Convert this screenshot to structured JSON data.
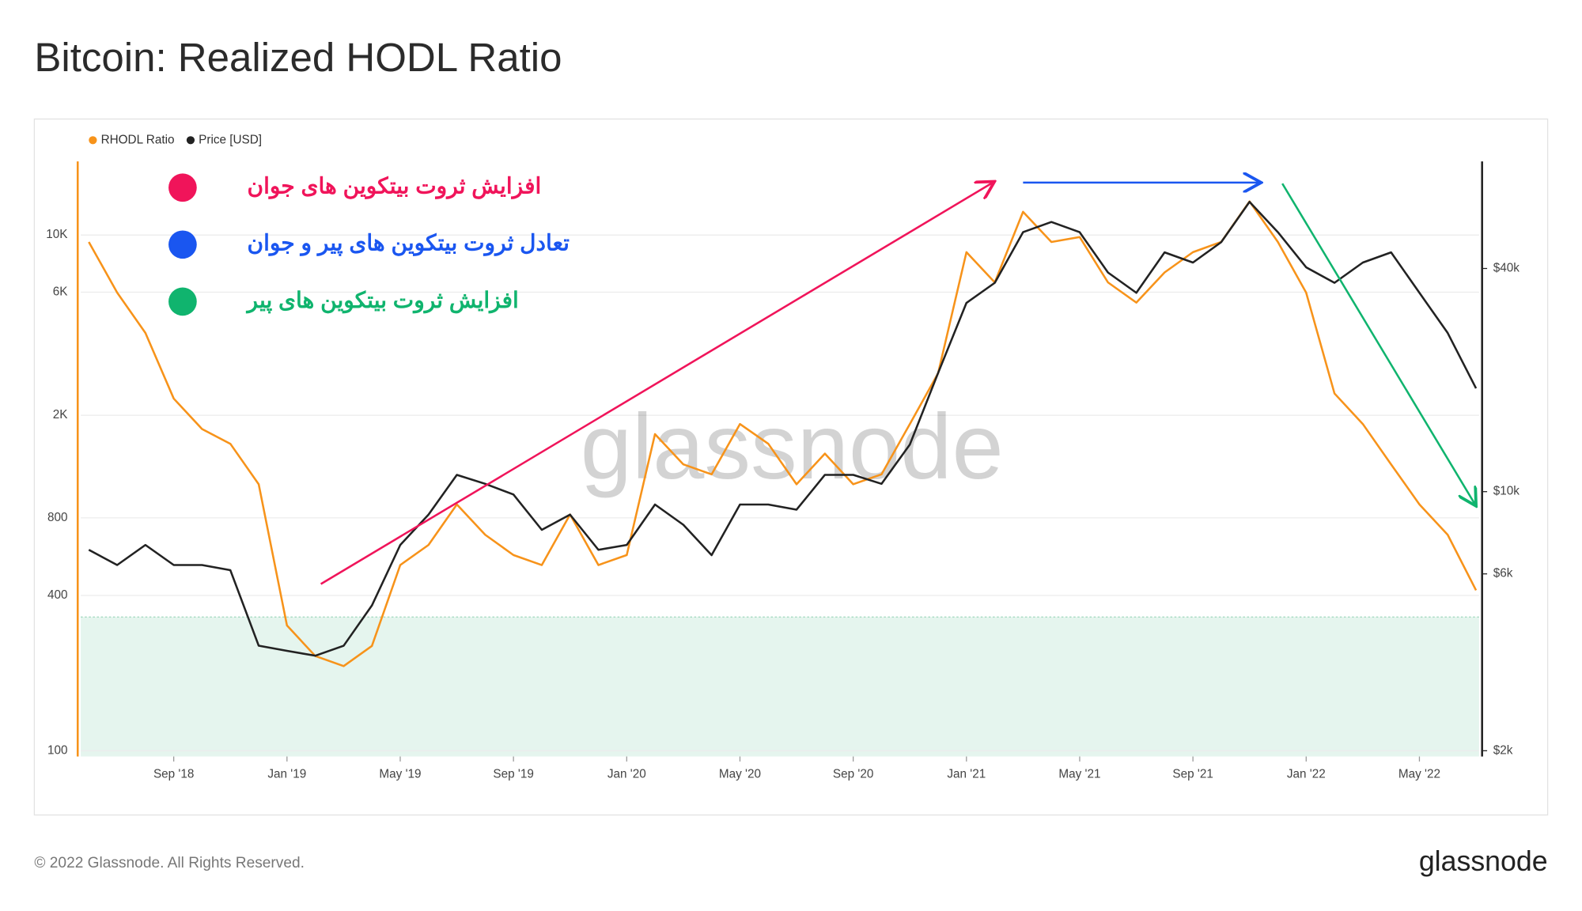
{
  "chart_data": {
    "type": "line",
    "title": "Bitcoin: Realized HODL Ratio",
    "watermark": "glassnode",
    "footer": "© 2022 Glassnode. All Rights Reserved.",
    "logo": "glassnode",
    "log_scale": true,
    "grid": true,
    "x": [
      "2018-06",
      "2018-07",
      "2018-08",
      "2018-09",
      "2018-10",
      "2018-11",
      "2018-12",
      "2019-01",
      "2019-02",
      "2019-03",
      "2019-04",
      "2019-05",
      "2019-06",
      "2019-07",
      "2019-08",
      "2019-09",
      "2019-10",
      "2019-11",
      "2019-12",
      "2020-01",
      "2020-02",
      "2020-03",
      "2020-04",
      "2020-05",
      "2020-06",
      "2020-07",
      "2020-08",
      "2020-09",
      "2020-10",
      "2020-11",
      "2020-12",
      "2021-01",
      "2021-02",
      "2021-03",
      "2021-04",
      "2021-05",
      "2021-06",
      "2021-07",
      "2021-08",
      "2021-09",
      "2021-10",
      "2021-11",
      "2021-12",
      "2022-01",
      "2022-02",
      "2022-03",
      "2022-04",
      "2022-05",
      "2022-06",
      "2022-07"
    ],
    "xlim": [
      "2018-06",
      "2022-07"
    ],
    "xticks": [
      {
        "value": "2018-09",
        "label": "Sep '18"
      },
      {
        "value": "2019-01",
        "label": "Jan '19"
      },
      {
        "value": "2019-05",
        "label": "May '19"
      },
      {
        "value": "2019-09",
        "label": "Sep '19"
      },
      {
        "value": "2020-01",
        "label": "Jan '20"
      },
      {
        "value": "2020-05",
        "label": "May '20"
      },
      {
        "value": "2020-09",
        "label": "Sep '20"
      },
      {
        "value": "2021-01",
        "label": "Jan '21"
      },
      {
        "value": "2021-05",
        "label": "May '21"
      },
      {
        "value": "2021-09",
        "label": "Sep '21"
      },
      {
        "value": "2022-01",
        "label": "Jan '22"
      },
      {
        "value": "2022-05",
        "label": "May '22"
      }
    ],
    "ylim": [
      95,
      19300
    ],
    "yticks": [
      100,
      400,
      800,
      {
        "value": 2000,
        "label": "2K"
      },
      {
        "value": 6000,
        "label": "6K"
      },
      {
        "value": 10000,
        "label": "10K"
      }
    ],
    "y2lim": [
      1930,
      77800
    ],
    "y2ticks": [
      {
        "value": 2000,
        "label": "$2k"
      },
      {
        "value": 6000,
        "label": "$6k"
      },
      {
        "value": 10000,
        "label": "$10k"
      },
      {
        "value": 40000,
        "label": "$40k"
      }
    ],
    "shaded_below": 330,
    "series": [
      {
        "name": "RHODL Ratio",
        "color": "#f7931a",
        "values": [
          9400,
          5980,
          4170,
          2320,
          1770,
          1550,
          1080,
          306,
          233,
          213,
          255,
          525,
          628,
          902,
          688,
          574,
          525,
          824,
          525,
          574,
          1690,
          1290,
          1180,
          1850,
          1550,
          1080,
          1420,
          1080,
          1180,
          1850,
          2910,
          8580,
          6550,
          12300,
          9400,
          9820,
          6550,
          5470,
          7160,
          8580,
          9400,
          13500,
          9400,
          5980,
          2430,
          1850,
          1290,
          902,
          688,
          419
        ]
      },
      {
        "name": "Price [USD]",
        "color": "#222222",
        "axis": "y2",
        "values": [
          6970,
          6340,
          7180,
          6340,
          6340,
          6140,
          3840,
          3720,
          3610,
          3840,
          4930,
          7180,
          8670,
          11100,
          10500,
          9820,
          7890,
          8670,
          6970,
          7180,
          9230,
          8140,
          6740,
          9230,
          9230,
          8940,
          11100,
          11100,
          10500,
          13400,
          20900,
          32300,
          36600,
          50100,
          53400,
          50100,
          39000,
          34400,
          44200,
          41500,
          47100,
          60500,
          50100,
          40300,
          36600,
          41500,
          44200,
          34400,
          26800,
          19000
        ]
      }
    ],
    "annotations": [
      {
        "text": "افزایش ثروت بیتکوین های جوان",
        "color": "#f0145a"
      },
      {
        "text": "تعادل ثروت بیتکوین های پیر و جوان",
        "color": "#1a56f0"
      },
      {
        "text": "افزایش ثروت بیتکوین های پیر",
        "color": "#10b46e"
      }
    ]
  }
}
